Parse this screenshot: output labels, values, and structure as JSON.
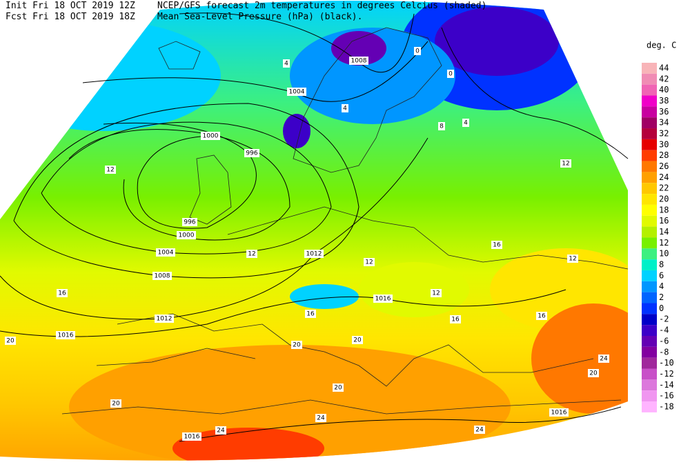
{
  "header": {
    "init": "Init  Fri 18 OCT 2019 12Z",
    "fcst": "Fcst Fri 18 OCT 2019 18Z",
    "title1": "NCEP/GFS forecast 2m temperatures in degrees Celcius (shaded)",
    "title2": "Mean Sea-Level Pressure (hPa) (black)."
  },
  "legend": {
    "title": "deg. C",
    "entries": [
      {
        "label": 44,
        "color": "#f8b4b8"
      },
      {
        "label": 42,
        "color": "#f08cb4"
      },
      {
        "label": 40,
        "color": "#f064b4"
      },
      {
        "label": 38,
        "color": "#f000c8"
      },
      {
        "label": 36,
        "color": "#c800a0"
      },
      {
        "label": 34,
        "color": "#a00064"
      },
      {
        "label": 32,
        "color": "#b4003c"
      },
      {
        "label": 30,
        "color": "#e60000"
      },
      {
        "label": 28,
        "color": "#ff3c00"
      },
      {
        "label": 26,
        "color": "#ff7800"
      },
      {
        "label": 24,
        "color": "#ffa000"
      },
      {
        "label": 22,
        "color": "#ffc800"
      },
      {
        "label": 20,
        "color": "#ffe600"
      },
      {
        "label": 18,
        "color": "#ffff00"
      },
      {
        "label": 16,
        "color": "#e1fa00"
      },
      {
        "label": 14,
        "color": "#b4f000"
      },
      {
        "label": 12,
        "color": "#78f000"
      },
      {
        "label": 10,
        "color": "#3cf080"
      },
      {
        "label": 8,
        "color": "#00f0c8"
      },
      {
        "label": 6,
        "color": "#00d2ff"
      },
      {
        "label": 4,
        "color": "#0096ff"
      },
      {
        "label": 2,
        "color": "#0064ff"
      },
      {
        "label": 0,
        "color": "#0032ff"
      },
      {
        "label": -2,
        "color": "#0000c8"
      },
      {
        "label": -4,
        "color": "#3c00c8"
      },
      {
        "label": -6,
        "color": "#6400b4"
      },
      {
        "label": -8,
        "color": "#8200a0"
      },
      {
        "label": -10,
        "color": "#a0289c"
      },
      {
        "label": -12,
        "color": "#c850c8"
      },
      {
        "label": -14,
        "color": "#dc78dc"
      },
      {
        "label": -16,
        "color": "#f096f0"
      },
      {
        "label": -18,
        "color": "#ffb4ff"
      }
    ]
  },
  "map_labels": [
    "1008",
    "1004",
    "1000",
    "996",
    "996",
    "1000",
    "1004",
    "1008",
    "1012",
    "1016",
    "1012",
    "1016",
    "1016",
    "1016",
    "12",
    "16",
    "20",
    "20",
    "24",
    "24",
    "24",
    "24",
    "20",
    "16",
    "12",
    "12",
    "8",
    "4",
    "0",
    "0",
    "4",
    "4",
    "12",
    "16",
    "20",
    "20",
    "20",
    "16",
    "16",
    "12",
    "12"
  ]
}
